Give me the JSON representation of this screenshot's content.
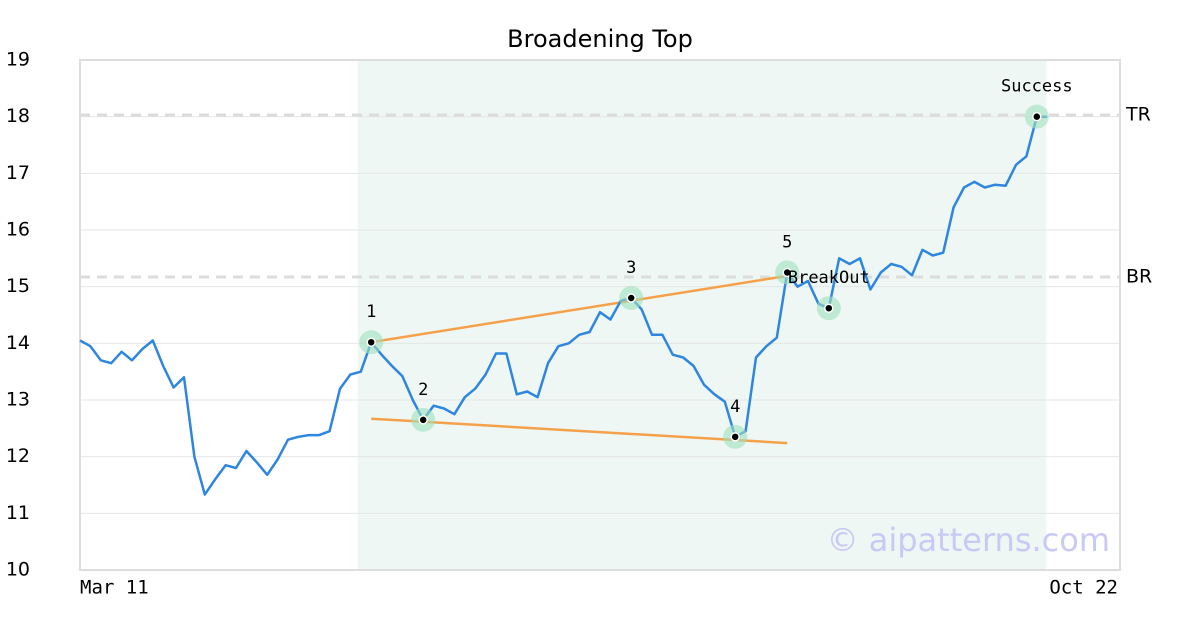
{
  "chart_data": {
    "type": "line",
    "title": "Broadening Top",
    "categories": [
      "Mar 11",
      null,
      null,
      null,
      null,
      null,
      null,
      null,
      null,
      null,
      null,
      null,
      null,
      null,
      null,
      null,
      null,
      null,
      null,
      null,
      null,
      null,
      null,
      null,
      null,
      null,
      null,
      null,
      null,
      null,
      null,
      null,
      null,
      null,
      null,
      null,
      null,
      null,
      null,
      null,
      null,
      null,
      null,
      null,
      null,
      null,
      null,
      null,
      null,
      null,
      null,
      null,
      null,
      null,
      null,
      null,
      null,
      null,
      null,
      null,
      null,
      null,
      null,
      null,
      null,
      null,
      null,
      null,
      null,
      null,
      null,
      null,
      null,
      null,
      null,
      null,
      null,
      null,
      null,
      null,
      null,
      null,
      null,
      null,
      null,
      null,
      null,
      null,
      null,
      null,
      null,
      null,
      null,
      null,
      null,
      null,
      null,
      null,
      null,
      null,
      "Oct 22"
    ],
    "series": [
      {
        "color": "#2e86de",
        "values": [
          14.05,
          13.95,
          13.7,
          13.65,
          13.85,
          13.7,
          13.9,
          14.05,
          13.6,
          13.22,
          13.4,
          12.0,
          11.33,
          11.6,
          11.85,
          11.8,
          12.1,
          11.9,
          11.68,
          11.95,
          12.3,
          12.35,
          12.38,
          12.38,
          12.45,
          13.2,
          13.45,
          13.5,
          14.02,
          13.8,
          13.6,
          13.42,
          13.0,
          12.65,
          12.9,
          12.85,
          12.75,
          13.05,
          13.2,
          13.45,
          13.82,
          13.82,
          13.1,
          13.15,
          13.05,
          13.65,
          13.95,
          14.0,
          14.15,
          14.2,
          14.55,
          14.42,
          14.75,
          14.8,
          14.6,
          14.15,
          14.15,
          13.8,
          13.75,
          13.6,
          13.27,
          13.1,
          12.97,
          12.35,
          12.45,
          13.75,
          13.95,
          14.1,
          15.25,
          15.0,
          15.1,
          14.7,
          14.62,
          15.5,
          15.4,
          15.5,
          14.95,
          15.25,
          15.4,
          15.35,
          15.2,
          15.65,
          15.55,
          15.6,
          16.4,
          16.75,
          16.85,
          16.75,
          16.8,
          16.78,
          17.15,
          17.3,
          18.0,
          18.0,
          null,
          null,
          null,
          null,
          null,
          null,
          null
        ]
      }
    ],
    "annotations": [
      {
        "text": "1",
        "x": 28,
        "y": 14.02
      },
      {
        "text": "2",
        "x": 33,
        "y": 12.65
      },
      {
        "text": "3",
        "x": 53,
        "y": 14.8
      },
      {
        "text": "4",
        "x": 63,
        "y": 12.35
      },
      {
        "text": "5",
        "x": 68,
        "y": 15.25
      },
      {
        "text": "BreakOut",
        "x": 72,
        "y": 14.62
      },
      {
        "text": "Success",
        "x": 92,
        "y": 18.0
      }
    ],
    "trend_lines": [
      {
        "color": "#f5a04a",
        "x": [
          28,
          68
        ],
        "y": [
          14.02,
          15.19
        ]
      },
      {
        "color": "#f5a04a",
        "x": [
          28,
          68
        ],
        "y": [
          12.67,
          12.24
        ]
      }
    ],
    "levels": [
      {
        "label": "TR",
        "value": 18.03
      },
      {
        "label": "BR",
        "value": 15.17
      }
    ],
    "highlight_range": [
      26.7,
      92.9
    ],
    "watermark": "© aipatterns.com",
    "ylim": [
      10,
      19
    ],
    "yticks": [
      10,
      11,
      12,
      13,
      14,
      15,
      16,
      17,
      18,
      19
    ],
    "grid": true
  }
}
